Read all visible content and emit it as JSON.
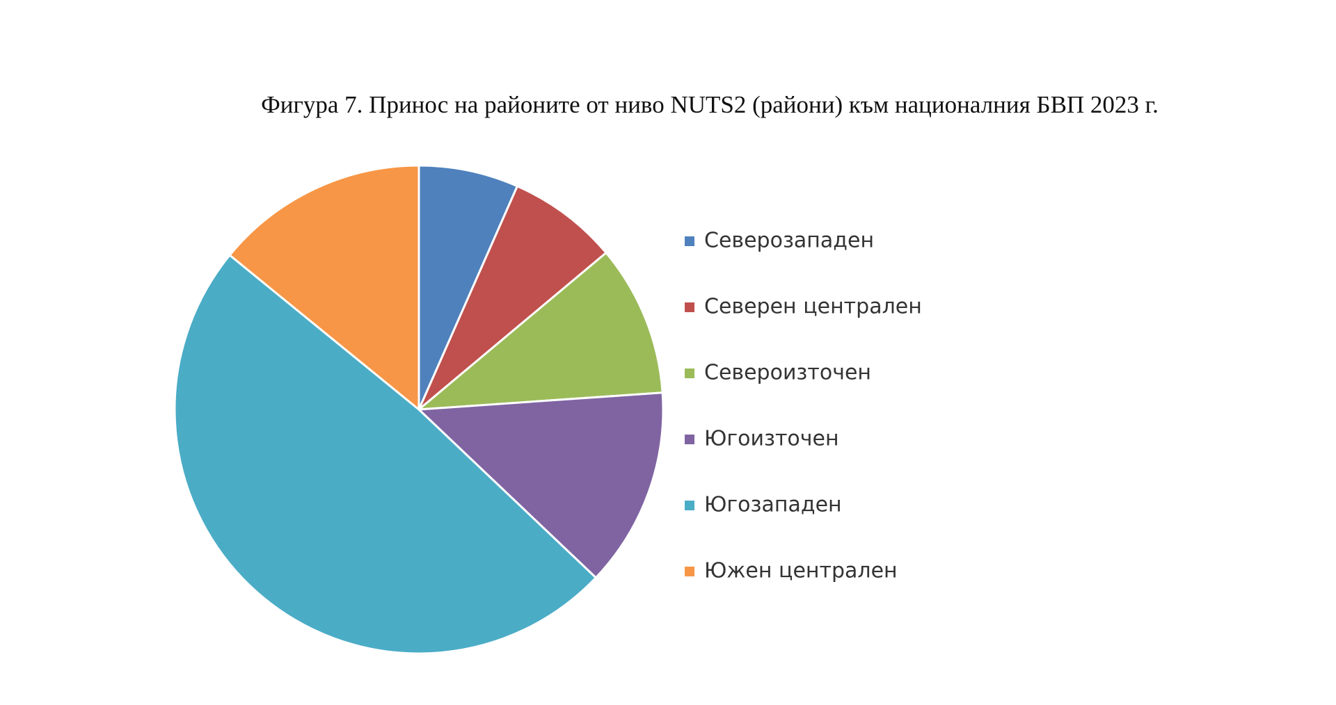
{
  "chart_data": {
    "type": "pie",
    "title": "Фигура 7. Принос на районите от ниво NUTS2 (райони) към националния БВП 2023 г.",
    "categories": [
      "Северозападен",
      "Северен централен",
      "Североизточен",
      "Югоизточен",
      "Югозападен",
      "Южен централен"
    ],
    "values": [
      6.6,
      7.3,
      10.0,
      13.2,
      48.8,
      14.1
    ],
    "colors": [
      "#4f81bd",
      "#c0504d",
      "#9bbb59",
      "#8064a2",
      "#4bacc6",
      "#f79646"
    ],
    "legend": "right"
  }
}
